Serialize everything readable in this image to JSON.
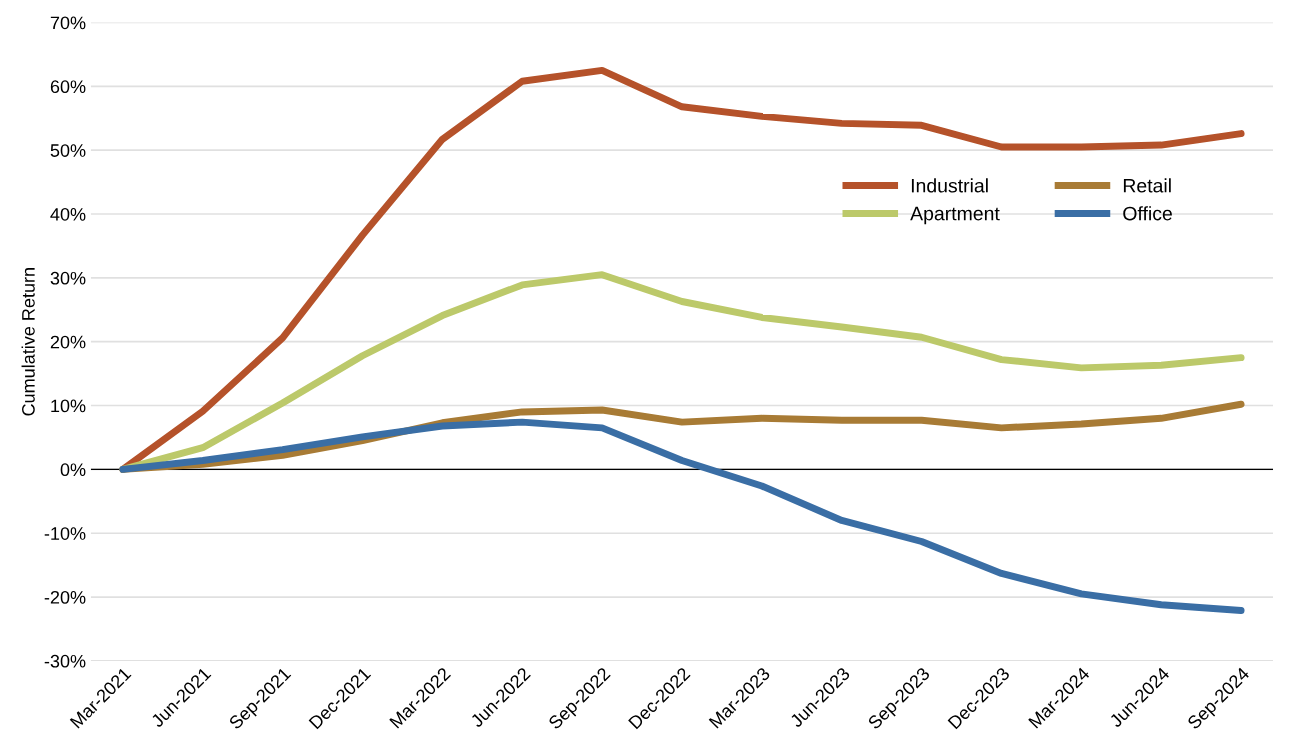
{
  "chart_data": {
    "type": "line",
    "ylabel": "Cumulative Return",
    "categories": [
      "Mar-2021",
      "Jun-2021",
      "Sep-2021",
      "Dec-2021",
      "Mar-2022",
      "Jun-2022",
      "Sep-2022",
      "Dec-2022",
      "Mar-2023",
      "Jun-2023",
      "Sep-2023",
      "Dec-2023",
      "Mar-2024",
      "Jun-2024",
      "Sep-2024"
    ],
    "series": [
      {
        "name": "Industrial",
        "color": "#b5522a",
        "values": [
          0,
          9.1,
          20.6,
          36.7,
          51.7,
          60.8,
          62.5,
          56.8,
          55.3,
          54.2,
          53.9,
          50.5,
          50.5,
          50.8,
          52.6
        ]
      },
      {
        "name": "Apartment",
        "color": "#bcc96a",
        "values": [
          0,
          3.4,
          10.4,
          17.8,
          24.1,
          28.9,
          30.5,
          26.3,
          23.8,
          22.3,
          20.7,
          17.2,
          15.9,
          16.3,
          17.5
        ]
      },
      {
        "name": "Retail",
        "color": "#a87b35",
        "values": [
          0,
          0.8,
          2.2,
          4.5,
          7.3,
          9.0,
          9.3,
          7.4,
          8.0,
          7.7,
          7.7,
          6.5,
          7.1,
          8.0,
          10.2
        ]
      },
      {
        "name": "Office",
        "color": "#3a6ea5",
        "values": [
          0,
          1.4,
          3.1,
          5.1,
          6.8,
          7.4,
          6.5,
          1.4,
          -2.6,
          -8.0,
          -11.3,
          -16.3,
          -19.5,
          -21.2,
          -22.1
        ]
      }
    ],
    "ylim": [
      -30,
      70
    ],
    "yticks": [
      {
        "value": -30,
        "label": "-30%"
      },
      {
        "value": -20,
        "label": "-20%"
      },
      {
        "value": -10,
        "label": "-10%"
      },
      {
        "value": 0,
        "label": "0%"
      },
      {
        "value": 10,
        "label": "10%"
      },
      {
        "value": 20,
        "label": "20%"
      },
      {
        "value": 30,
        "label": "30%"
      },
      {
        "value": 40,
        "label": "40%"
      },
      {
        "value": 50,
        "label": "50%"
      },
      {
        "value": 60,
        "label": "60%"
      },
      {
        "value": 70,
        "label": "70%"
      }
    ],
    "ref_lines": [
      {
        "axis": "y",
        "value": 0,
        "color": "#000000"
      }
    ],
    "grid": "y",
    "legend": "right",
    "marker": "none",
    "line_style": "solid"
  }
}
